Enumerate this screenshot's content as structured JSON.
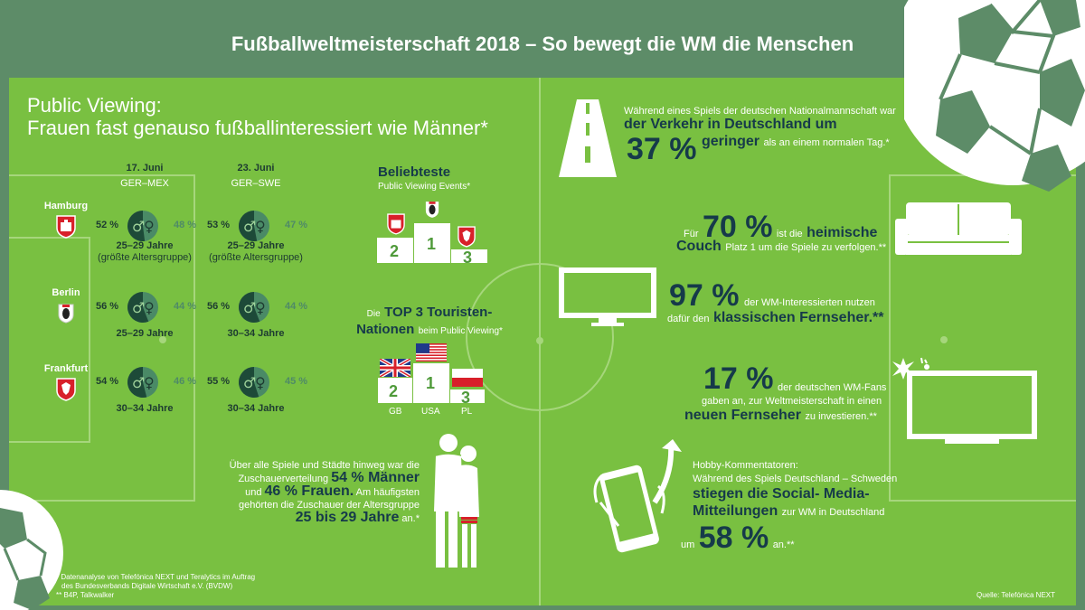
{
  "title": "Fußballweltmeisterschaft 2018 – So bewegt die WM die Menschen",
  "public_viewing": {
    "heading_1": "Public Viewing:",
    "heading_2": "Frauen fast genauso fußballinteressiert wie Männer*",
    "matches": [
      {
        "date": "17. Juni",
        "teams": "GER–MEX"
      },
      {
        "date": "23. Juni",
        "teams": "GER–SWE"
      }
    ],
    "cities": [
      {
        "name": "Hamburg",
        "emblem": "hamburg-coat-icon",
        "m1": "52 %",
        "w1": "48 %",
        "age1": "25–29 Jahre",
        "note1": "(größte Altersgruppe)",
        "m2": "53 %",
        "w2": "47 %",
        "age2": "25–29 Jahre",
        "note2": "(größte Altersgruppe)"
      },
      {
        "name": "Berlin",
        "emblem": "berlin-coat-icon",
        "m1": "56 %",
        "w1": "44 %",
        "age1": "25–29 Jahre",
        "m2": "56 %",
        "w2": "44 %",
        "age2": "30–34 Jahre"
      },
      {
        "name": "Frankfurt",
        "emblem": "frankfurt-coat-icon",
        "m1": "54 %",
        "w1": "46 %",
        "age1": "30–34 Jahre",
        "m2": "55 %",
        "w2": "45 %",
        "age2": "30–34 Jahre"
      }
    ],
    "male_symbol": "♂",
    "female_symbol": "♀"
  },
  "events": {
    "title": "Beliebteste",
    "subtitle": "Public Viewing Events*",
    "places": [
      "2",
      "1",
      "3"
    ]
  },
  "tourists": {
    "title_1": "Die",
    "title_2": "TOP 3 Touristen-",
    "title_3": "Nationen",
    "subtitle": "beim Public Viewing*",
    "places": [
      "2",
      "1",
      "3"
    ],
    "countries": [
      "GB",
      "USA",
      "PL"
    ]
  },
  "summary": {
    "line1": "Über alle Spiele und Städte hinweg war die",
    "line2_a": "Zuschauerverteilung",
    "line2_b": "54 % Männer",
    "line3_a": "und",
    "line3_b": "46 % Frauen.",
    "line3_c": "Am häufigsten",
    "line4": "gehörten die Zuschauer der Altersgruppe",
    "line5_a": "25 bis 29 Jahre",
    "line5_b": "an.*"
  },
  "traffic": {
    "line1": "Während eines Spiels der deutschen Nationalmannschaft war",
    "line2": "der Verkehr in Deutschland um",
    "pct": "37 %",
    "line3_a": "geringer",
    "line3_b": "als an einem normalen Tag.*"
  },
  "couch": {
    "pre": "Für",
    "pct": "70 %",
    "mid": "ist die",
    "b1": "heimische",
    "b2": "Couch",
    "rest": "Platz 1 um die Spiele zu verfolgen.**"
  },
  "tv": {
    "pct": "97 %",
    "line1": "der WM-Interessierten nutzen",
    "line2_a": "dafür den",
    "line2_b": "klassischen Fernseher.**"
  },
  "newtv": {
    "pct": "17 %",
    "line1": "der deutschen WM-Fans",
    "line2": "gaben an, zur Weltmeisterschaft in einen",
    "b": "neuen Fernseher",
    "rest": "zu investieren.**"
  },
  "social": {
    "line1": "Hobby-Kommentatoren:",
    "line2": "Während des Spiels Deutschland – Schweden",
    "b1": "stiegen die Social- Media-",
    "b2": "Mitteilungen",
    "rest": "zur WM in Deutschland",
    "pre": "um",
    "pct": "58 %",
    "post": "an.**"
  },
  "footnotes": {
    "f1": "* Datenanalyse von Telefónica NEXT und Teralytics im Auftrag",
    "f2": "des Bundesverbands Digitale Wirtschaft e.V. (BVDW)",
    "f3": "** B4P, Talkwalker"
  },
  "source": "Quelle: Telefónica NEXT",
  "colors": {
    "pitch": "#79c041",
    "frame": "#5d8c68",
    "navy": "#163a4a",
    "donut_dark": "#1d4a38",
    "donut_light": "#4a8a66"
  }
}
